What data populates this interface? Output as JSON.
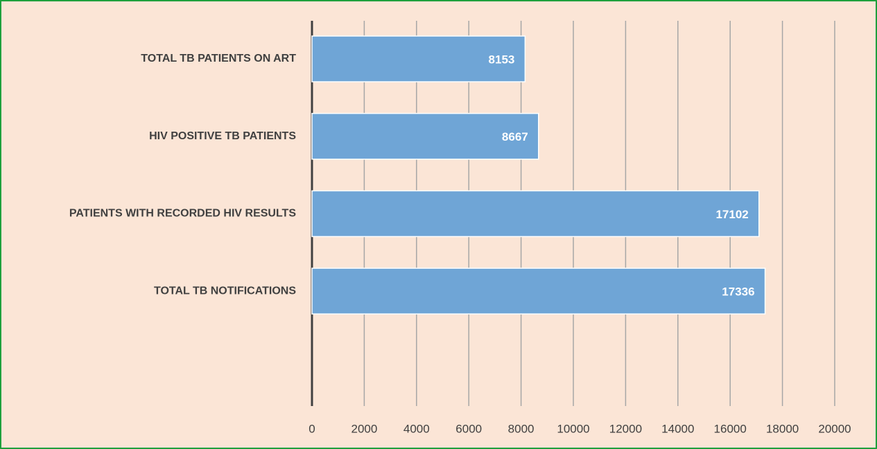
{
  "chart_data": {
    "type": "bar",
    "orientation": "horizontal",
    "categories": [
      "TOTAL TB PATIENTS ON ART",
      "HIV POSITIVE TB PATIENTS",
      "PATIENTS WITH RECORDED  HIV RESULTS",
      "TOTAL TB NOTIFICATIONS"
    ],
    "values": [
      8153,
      8667,
      17102,
      17336
    ],
    "color": "#6fa5d6",
    "xlim": [
      0,
      20000
    ],
    "xticks": [
      0,
      2000,
      4000,
      6000,
      8000,
      10000,
      12000,
      14000,
      16000,
      18000,
      20000
    ],
    "grid": true
  }
}
